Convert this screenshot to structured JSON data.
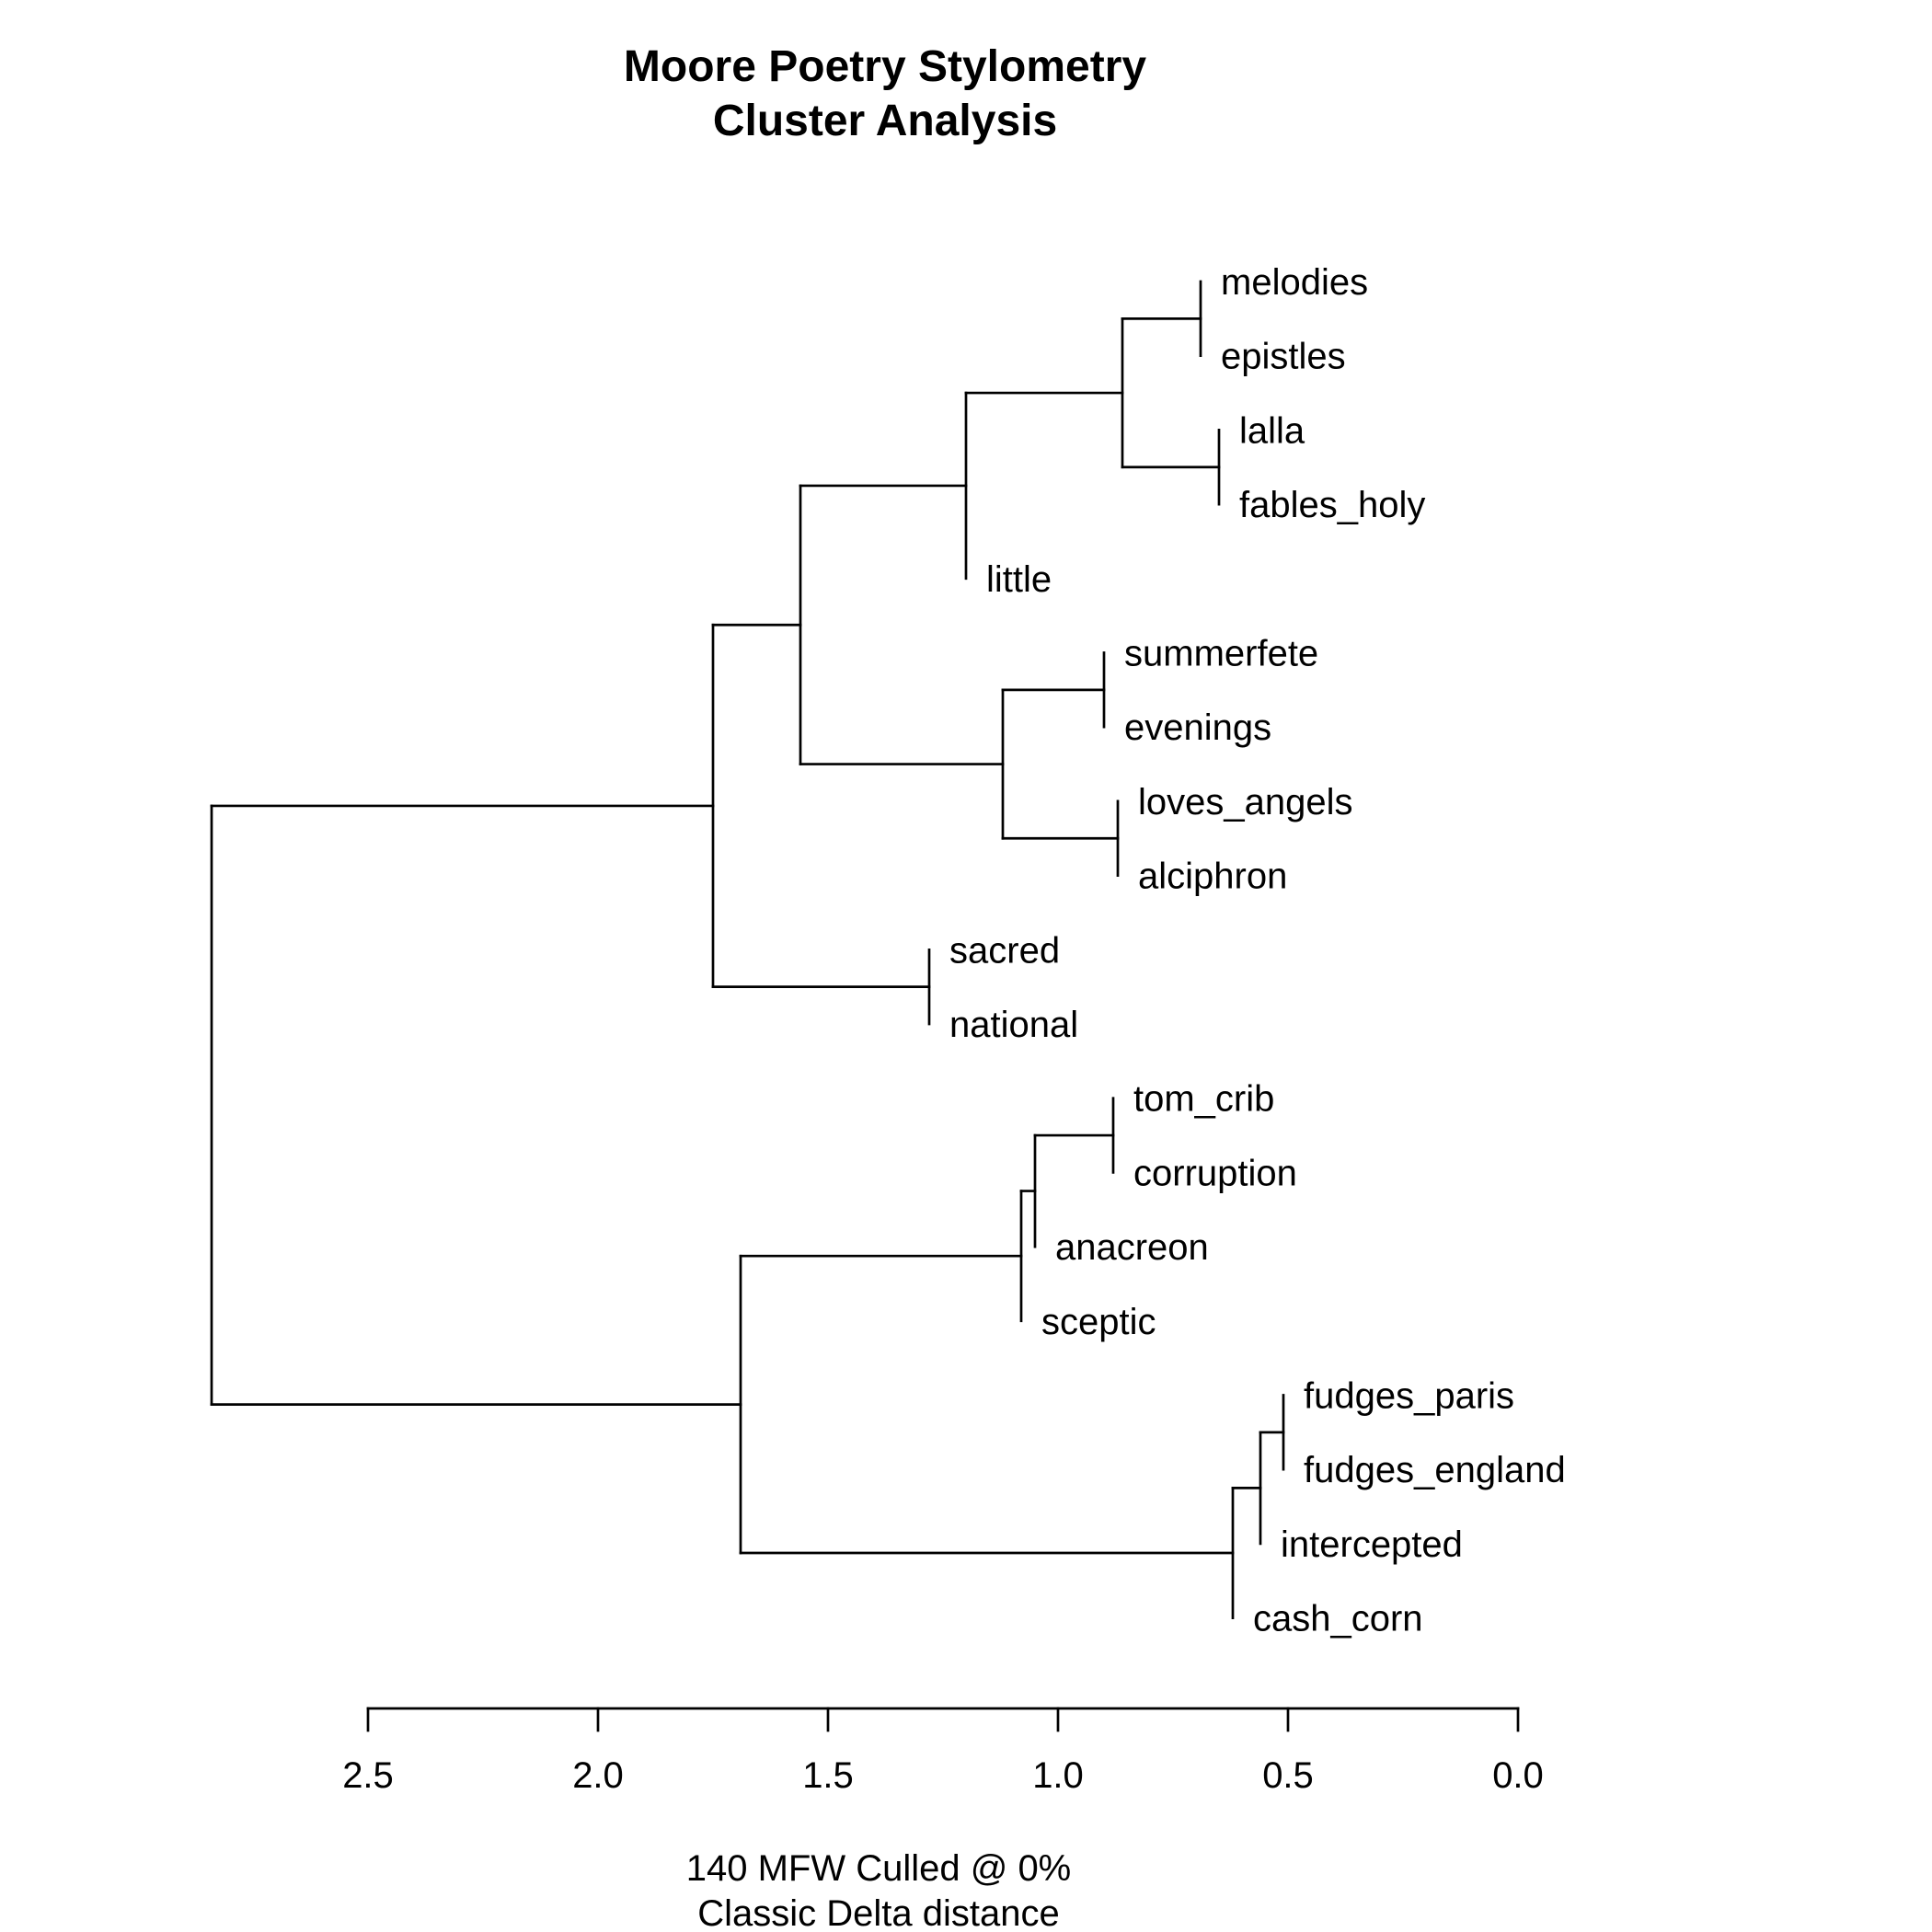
{
  "chart_data": {
    "type": "dendrogram",
    "title": [
      "Moore Poetry Stylometry",
      "Cluster Analysis"
    ],
    "xlabel": [
      "140 MFW  Culled @ 0%",
      "Classic Delta distance"
    ],
    "xlim": [
      2.5,
      0.0
    ],
    "ticks": [
      2.5,
      2.0,
      1.5,
      1.0,
      0.5,
      0.0
    ],
    "tick_labels": [
      "2.5",
      "2.0",
      "1.5",
      "1.0",
      "0.5",
      "0.0"
    ],
    "leaves": [
      "melodies",
      "epistles",
      "lalla",
      "fables_holy",
      "little",
      "summerfete",
      "evenings",
      "loves_angels",
      "alciphron",
      "sacred",
      "national",
      "tom_crib",
      "corruption",
      "anacreon",
      "sceptic",
      "fudges_paris",
      "fudges_england",
      "intercepted",
      "cash_corn"
    ],
    "tree": {
      "h": 2.84,
      "children": [
        {
          "h": 1.75,
          "children": [
            {
              "h": 1.56,
              "children": [
                {
                  "h": 1.2,
                  "children": [
                    {
                      "h": 0.86,
                      "children": [
                        {
                          "h": 0.69,
                          "children": [
                            {
                              "leaf": 0
                            },
                            {
                              "leaf": 1
                            }
                          ]
                        },
                        {
                          "h": 0.65,
                          "children": [
                            {
                              "leaf": 2
                            },
                            {
                              "leaf": 3
                            }
                          ]
                        }
                      ]
                    },
                    {
                      "leaf": 4
                    }
                  ]
                },
                {
                  "h": 1.12,
                  "children": [
                    {
                      "h": 0.9,
                      "children": [
                        {
                          "leaf": 5
                        },
                        {
                          "leaf": 6
                        }
                      ]
                    },
                    {
                      "h": 0.87,
                      "children": [
                        {
                          "leaf": 7
                        },
                        {
                          "leaf": 8
                        }
                      ]
                    }
                  ]
                }
              ]
            },
            {
              "h": 1.28,
              "children": [
                {
                  "leaf": 9
                },
                {
                  "leaf": 10
                }
              ]
            }
          ]
        },
        {
          "h": 1.69,
          "children": [
            {
              "h": 1.08,
              "children": [
                {
                  "h": 1.05,
                  "children": [
                    {
                      "h": 0.88,
                      "children": [
                        {
                          "leaf": 11
                        },
                        {
                          "leaf": 12
                        }
                      ]
                    },
                    {
                      "leaf": 13
                    }
                  ]
                },
                {
                  "leaf": 14
                }
              ]
            },
            {
              "h": 0.62,
              "children": [
                {
                  "h": 0.56,
                  "children": [
                    {
                      "h": 0.51,
                      "children": [
                        {
                          "leaf": 15
                        },
                        {
                          "leaf": 16
                        }
                      ]
                    },
                    {
                      "leaf": 17
                    }
                  ]
                },
                {
                  "leaf": 18
                }
              ]
            }
          ]
        }
      ]
    }
  }
}
